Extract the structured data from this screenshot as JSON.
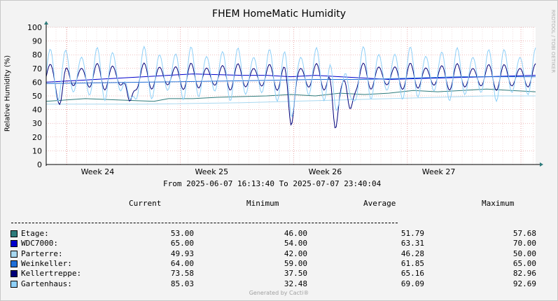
{
  "chart_data": {
    "type": "line",
    "title": "FHEM HomeMatic Humidity",
    "ylabel": "Relative Humidity (%)",
    "ylim": [
      0,
      100
    ],
    "yticks": [
      0,
      10,
      20,
      30,
      40,
      50,
      60,
      70,
      80,
      90,
      100
    ],
    "xticks": [
      "Week 24",
      "Week 25",
      "Week 26",
      "Week 27"
    ],
    "period": "From 2025-06-07 16:13:40 To 2025-07-07 23:40:04",
    "grid": true,
    "legend_position": "bottom",
    "columns": [
      "Current",
      "Minimum",
      "Average",
      "Maximum"
    ],
    "series": [
      {
        "name": "Etage:",
        "color": "#2e7b7b",
        "current": "53.00",
        "minimum": "46.00",
        "average": "51.79",
        "maximum": "57.68",
        "points": [
          [
            0,
            46
          ],
          [
            8,
            48
          ],
          [
            15,
            47
          ],
          [
            22,
            46
          ],
          [
            25,
            48
          ],
          [
            30,
            48
          ],
          [
            35,
            49
          ],
          [
            45,
            50
          ],
          [
            50,
            51
          ],
          [
            55,
            50
          ],
          [
            60,
            52
          ],
          [
            65,
            51
          ],
          [
            70,
            52
          ],
          [
            75,
            54
          ],
          [
            80,
            53
          ],
          [
            85,
            54
          ],
          [
            90,
            55
          ],
          [
            95,
            54
          ],
          [
            100,
            53
          ]
        ]
      },
      {
        "name": "WDC7000:",
        "color": "#0000cc",
        "current": "65.00",
        "minimum": "54.00",
        "average": "63.31",
        "maximum": "70.00",
        "points": [
          [
            0,
            60
          ],
          [
            10,
            62
          ],
          [
            20,
            64
          ],
          [
            25,
            65
          ],
          [
            30,
            66
          ],
          [
            40,
            65
          ],
          [
            45,
            65
          ],
          [
            50,
            64
          ],
          [
            55,
            65
          ],
          [
            60,
            64
          ],
          [
            65,
            63
          ],
          [
            70,
            62
          ],
          [
            80,
            63
          ],
          [
            90,
            64
          ],
          [
            100,
            65
          ]
        ]
      },
      {
        "name": "Parterre:",
        "color": "#a8d8f0",
        "current": "49.93",
        "minimum": "42.00",
        "average": "46.28",
        "maximum": "50.00",
        "points": [
          [
            0,
            44
          ],
          [
            20,
            44
          ],
          [
            40,
            45
          ],
          [
            50,
            46
          ],
          [
            60,
            47
          ],
          [
            70,
            48
          ],
          [
            80,
            49
          ],
          [
            90,
            50
          ],
          [
            100,
            50
          ]
        ]
      },
      {
        "name": "Weinkeller:",
        "color": "#1f6fd8",
        "current": "64.00",
        "minimum": "59.00",
        "average": "61.85",
        "maximum": "65.00",
        "points": [
          [
            0,
            59
          ],
          [
            20,
            60
          ],
          [
            40,
            61
          ],
          [
            55,
            62
          ],
          [
            65,
            62
          ],
          [
            75,
            63
          ],
          [
            85,
            64
          ],
          [
            100,
            64
          ]
        ]
      },
      {
        "name": "Kellertreppe:",
        "color": "#00007a",
        "current": "73.58",
        "minimum": "37.50",
        "average": "65.16",
        "maximum": "82.96",
        "osc": {
          "base": 64,
          "amp": 10,
          "period": 3.2,
          "dips": [
            [
              3,
              -14
            ],
            [
              17,
              -24
            ],
            [
              50,
              -30
            ],
            [
              59,
              -40
            ],
            [
              62,
              -28
            ]
          ]
        }
      },
      {
        "name": "Gartenhaus:",
        "color": "#8fd0f8",
        "current": "85.03",
        "minimum": "32.48",
        "average": "69.09",
        "maximum": "92.69",
        "osc": {
          "base": 66,
          "amp": 20,
          "period": 3.2,
          "dips": [
            [
              17,
              -30
            ],
            [
              50,
              -20
            ],
            [
              59,
              -28
            ],
            [
              62,
              -24
            ]
          ]
        }
      }
    ]
  },
  "footer": "Generated by Cacti®",
  "side_text": "RRDTOOL / TOBI OETIKER"
}
